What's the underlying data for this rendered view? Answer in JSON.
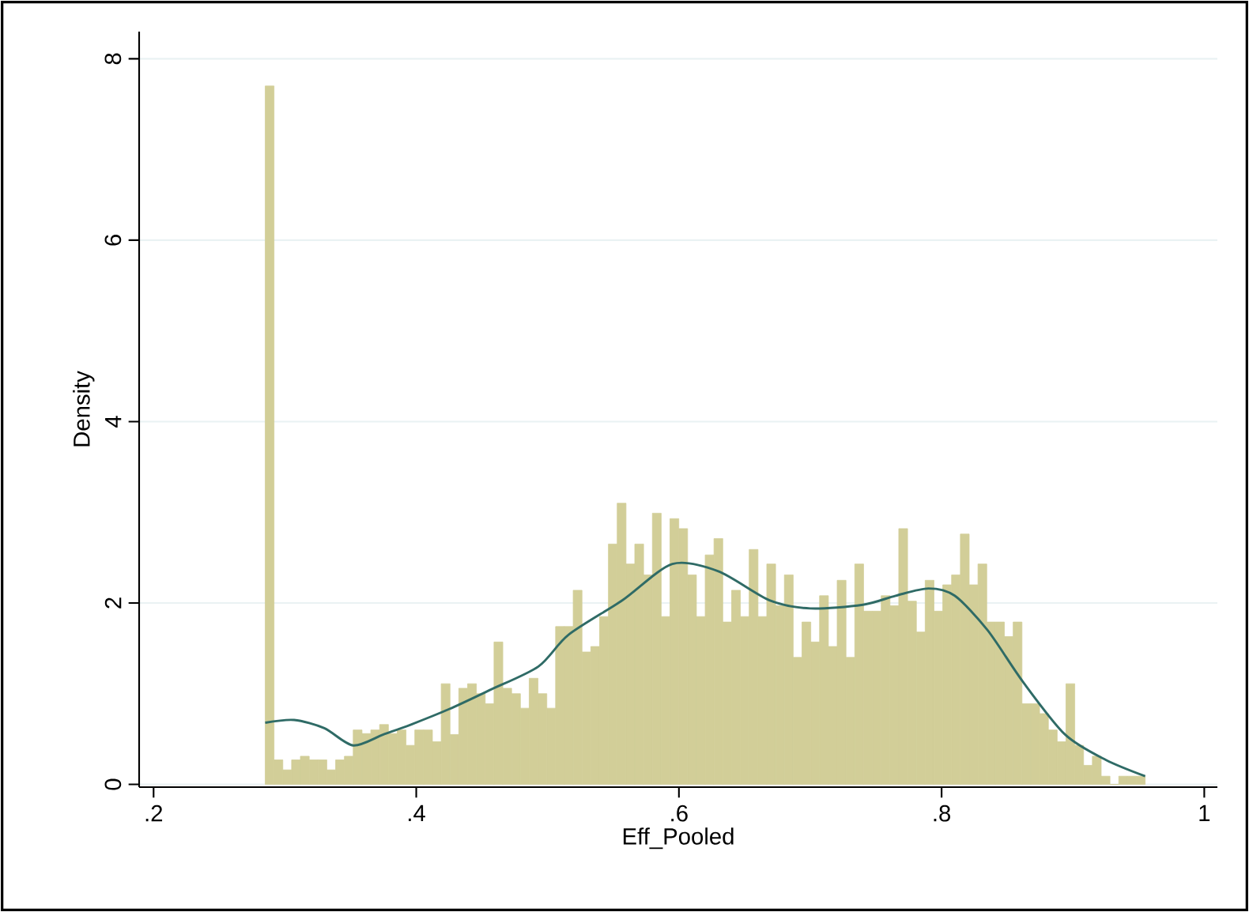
{
  "chart_data": {
    "type": "histogram",
    "xlabel": "Eff_Pooled",
    "ylabel": "Density",
    "xlim": [
      0.189,
      1.01
    ],
    "ylim": [
      -0.03,
      8.3
    ],
    "xticks": [
      {
        "value": 0.2,
        "label": ".2"
      },
      {
        "value": 0.4,
        "label": ".4"
      },
      {
        "value": 0.6,
        "label": ".6"
      },
      {
        "value": 0.8,
        "label": ".8"
      },
      1
    ],
    "yticks": [
      0,
      2,
      4,
      6,
      8
    ],
    "grid": "y",
    "series": [
      {
        "type": "histogram",
        "color": "#d2ce98",
        "bins": [
          0.285,
          0.2917,
          0.2984,
          0.3051,
          0.3118,
          0.3185,
          0.3252,
          0.3319,
          0.3386,
          0.3453,
          0.352,
          0.3587,
          0.3654,
          0.3721,
          0.3788,
          0.3855,
          0.3922,
          0.3989,
          0.4056,
          0.4123,
          0.419,
          0.4257,
          0.4324,
          0.4391,
          0.4458,
          0.4525,
          0.4592,
          0.4659,
          0.4726,
          0.4793,
          0.486,
          0.4927,
          0.4994,
          0.5061,
          0.5128,
          0.5195,
          0.5262,
          0.5329,
          0.5396,
          0.5463,
          0.553,
          0.5597,
          0.5664,
          0.5731,
          0.5798,
          0.5865,
          0.5932,
          0.5999,
          0.6066,
          0.6133,
          0.62,
          0.6267,
          0.6334,
          0.6401,
          0.6468,
          0.6535,
          0.6602,
          0.6669,
          0.6736,
          0.6803,
          0.687,
          0.6937,
          0.7004,
          0.7071,
          0.7138,
          0.7205,
          0.7272,
          0.7339,
          0.7406,
          0.7473,
          0.754,
          0.7607,
          0.7674,
          0.7741,
          0.7808,
          0.7875,
          0.7942,
          0.8009,
          0.8076,
          0.8143,
          0.821,
          0.8277,
          0.8344,
          0.8411,
          0.8478,
          0.8545,
          0.8612,
          0.8679,
          0.8746,
          0.8813,
          0.888,
          0.8947,
          0.9014,
          0.9081,
          0.9148,
          0.9215,
          0.9282,
          0.9349,
          0.9416,
          0.9483,
          0.955
        ],
        "values": [
          7.7,
          0.27,
          0.16,
          0.27,
          0.31,
          0.27,
          0.27,
          0.16,
          0.27,
          0.31,
          0.6,
          0.56,
          0.6,
          0.66,
          0.56,
          0.6,
          0.43,
          0.6,
          0.6,
          0.47,
          1.11,
          0.55,
          1.06,
          1.11,
          1.0,
          0.89,
          1.57,
          1.06,
          1.0,
          0.84,
          1.17,
          1.0,
          0.84,
          1.74,
          1.74,
          2.14,
          1.46,
          1.52,
          1.85,
          2.65,
          3.1,
          2.43,
          2.65,
          2.31,
          2.99,
          1.85,
          2.93,
          2.82,
          2.31,
          1.85,
          2.53,
          2.71,
          1.79,
          2.14,
          1.85,
          2.59,
          1.85,
          2.43,
          1.97,
          2.31,
          1.4,
          1.79,
          1.57,
          2.08,
          1.52,
          2.25,
          1.4,
          2.43,
          1.91,
          1.91,
          2.08,
          1.97,
          2.82,
          2.02,
          1.68,
          2.25,
          1.91,
          2.2,
          2.31,
          2.76,
          2.2,
          2.43,
          1.79,
          1.79,
          1.63,
          1.79,
          0.89,
          0.89,
          0.78,
          0.6,
          0.47,
          1.11,
          0.43,
          0.21,
          0.31,
          0.09,
          0,
          0.09,
          0.09,
          0.09
        ]
      },
      {
        "type": "line",
        "color": "#2f6b66",
        "x": [
          0.285,
          0.307,
          0.33,
          0.352,
          0.375,
          0.396,
          0.425,
          0.456,
          0.493,
          0.516,
          0.557,
          0.595,
          0.63,
          0.669,
          0.7,
          0.74,
          0.765,
          0.79,
          0.81,
          0.835,
          0.862,
          0.894,
          0.925,
          0.955
        ],
        "values": [
          0.68,
          0.71,
          0.62,
          0.43,
          0.55,
          0.66,
          0.83,
          1.04,
          1.3,
          1.65,
          2.03,
          2.43,
          2.35,
          2.03,
          1.94,
          1.98,
          2.08,
          2.16,
          2.08,
          1.7,
          1.13,
          0.55,
          0.27,
          0.09
        ]
      }
    ]
  }
}
